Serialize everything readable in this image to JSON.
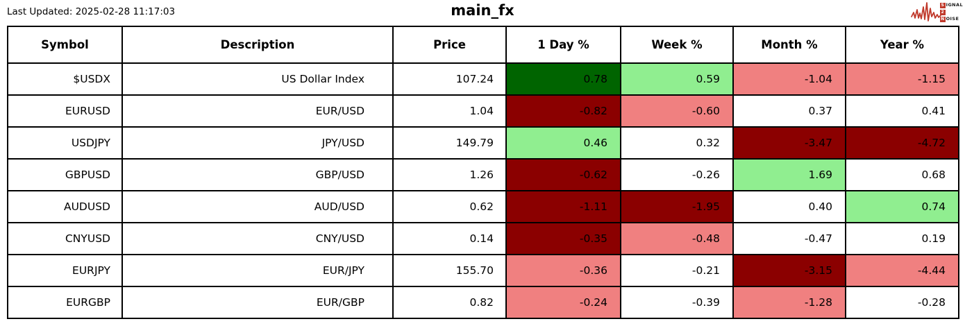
{
  "page": {
    "last_updated": "Last Updated: 2025-02-28 11:17:03",
    "title": "main_fx"
  },
  "logo": {
    "word1_initial": "S",
    "word1_rest": "IGNAL",
    "word2": "2",
    "word3_initial": "N",
    "word3_rest": "OISE",
    "accent_color": "#c0392b"
  },
  "chart_data": {
    "type": "table",
    "title": "main_fx",
    "columns": [
      "Symbol",
      "Description",
      "Price",
      "1 Day %",
      "Week %",
      "Month %",
      "Year %"
    ],
    "cell_colors": {
      "strong_gain": "#006400",
      "gain": "#90EE90",
      "loss": "#F08080",
      "strong_loss": "#8B0000",
      "neutral": "#FFFFFF"
    },
    "rows": [
      {
        "symbol": "$USDX",
        "description": "US Dollar Index",
        "price": "107.24",
        "changes": [
          {
            "value": "0.78",
            "bg": "#006400"
          },
          {
            "value": "0.59",
            "bg": "#90EE90"
          },
          {
            "value": "-1.04",
            "bg": "#F08080"
          },
          {
            "value": "-1.15",
            "bg": "#F08080"
          }
        ]
      },
      {
        "symbol": "EURUSD",
        "description": "EUR/USD",
        "price": "1.04",
        "changes": [
          {
            "value": "-0.82",
            "bg": "#8B0000"
          },
          {
            "value": "-0.60",
            "bg": "#F08080"
          },
          {
            "value": "0.37",
            "bg": "#FFFFFF"
          },
          {
            "value": "0.41",
            "bg": "#FFFFFF"
          }
        ]
      },
      {
        "symbol": "USDJPY",
        "description": "JPY/USD",
        "price": "149.79",
        "changes": [
          {
            "value": "0.46",
            "bg": "#90EE90"
          },
          {
            "value": "0.32",
            "bg": "#FFFFFF"
          },
          {
            "value": "-3.47",
            "bg": "#8B0000"
          },
          {
            "value": "-4.72",
            "bg": "#8B0000"
          }
        ]
      },
      {
        "symbol": "GBPUSD",
        "description": "GBP/USD",
        "price": "1.26",
        "changes": [
          {
            "value": "-0.62",
            "bg": "#8B0000"
          },
          {
            "value": "-0.26",
            "bg": "#FFFFFF"
          },
          {
            "value": "1.69",
            "bg": "#90EE90"
          },
          {
            "value": "0.68",
            "bg": "#FFFFFF"
          }
        ]
      },
      {
        "symbol": "AUDUSD",
        "description": "AUD/USD",
        "price": "0.62",
        "changes": [
          {
            "value": "-1.11",
            "bg": "#8B0000"
          },
          {
            "value": "-1.95",
            "bg": "#8B0000"
          },
          {
            "value": "0.40",
            "bg": "#FFFFFF"
          },
          {
            "value": "0.74",
            "bg": "#90EE90"
          }
        ]
      },
      {
        "symbol": "CNYUSD",
        "description": "CNY/USD",
        "price": "0.14",
        "changes": [
          {
            "value": "-0.35",
            "bg": "#8B0000"
          },
          {
            "value": "-0.48",
            "bg": "#F08080"
          },
          {
            "value": "-0.47",
            "bg": "#FFFFFF"
          },
          {
            "value": "0.19",
            "bg": "#FFFFFF"
          }
        ]
      },
      {
        "symbol": "EURJPY",
        "description": "EUR/JPY",
        "price": "155.70",
        "changes": [
          {
            "value": "-0.36",
            "bg": "#F08080"
          },
          {
            "value": "-0.21",
            "bg": "#FFFFFF"
          },
          {
            "value": "-3.15",
            "bg": "#8B0000"
          },
          {
            "value": "-4.44",
            "bg": "#F08080"
          }
        ]
      },
      {
        "symbol": "EURGBP",
        "description": "EUR/GBP",
        "price": "0.82",
        "changes": [
          {
            "value": "-0.24",
            "bg": "#F08080"
          },
          {
            "value": "-0.39",
            "bg": "#FFFFFF"
          },
          {
            "value": "-1.28",
            "bg": "#F08080"
          },
          {
            "value": "-0.28",
            "bg": "#FFFFFF"
          }
        ]
      }
    ]
  }
}
